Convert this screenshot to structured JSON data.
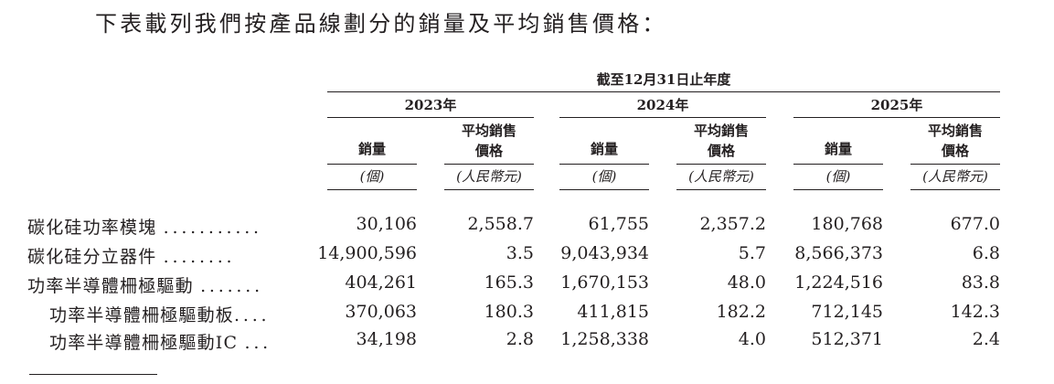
{
  "intro": "下表載列我們按產品線劃分的銷量及平均銷售價格：",
  "period_title": "截至12月31日止年度",
  "years": [
    "2023年",
    "2024年",
    "2025年"
  ],
  "column_headers": {
    "volume": "銷量",
    "asp_line1": "平均銷售",
    "asp_line2": "價格"
  },
  "units": {
    "volume": "(個)",
    "asp": "(人民幣元)"
  },
  "rows": [
    {
      "label": "碳化硅功率模塊",
      "leaders": "...........",
      "values": [
        "30,106",
        "2,558.7",
        "61,755",
        "2,357.2",
        "180,768",
        "677.0"
      ]
    },
    {
      "label": "碳化硅分立器件",
      "leaders": "........",
      "values": [
        "14,900,596",
        "3.5",
        "9,043,934",
        "5.7",
        "8,566,373",
        "6.8"
      ]
    },
    {
      "label": "功率半導體柵極驅動",
      "leaders": ".......",
      "values": [
        "404,261",
        "165.3",
        "1,670,153",
        "48.0",
        "1,224,516",
        "83.8"
      ]
    },
    {
      "label": "功率半導體柵極驅動板",
      "leaders": "....",
      "values": [
        "370,063",
        "180.3",
        "411,815",
        "182.2",
        "712,145",
        "142.3"
      ]
    },
    {
      "label": "功率半導體柵極驅動IC",
      "leaders": "...",
      "values": [
        "34,198",
        "2.8",
        "1,258,338",
        "4.0",
        "512,371",
        "2.4"
      ]
    }
  ]
}
